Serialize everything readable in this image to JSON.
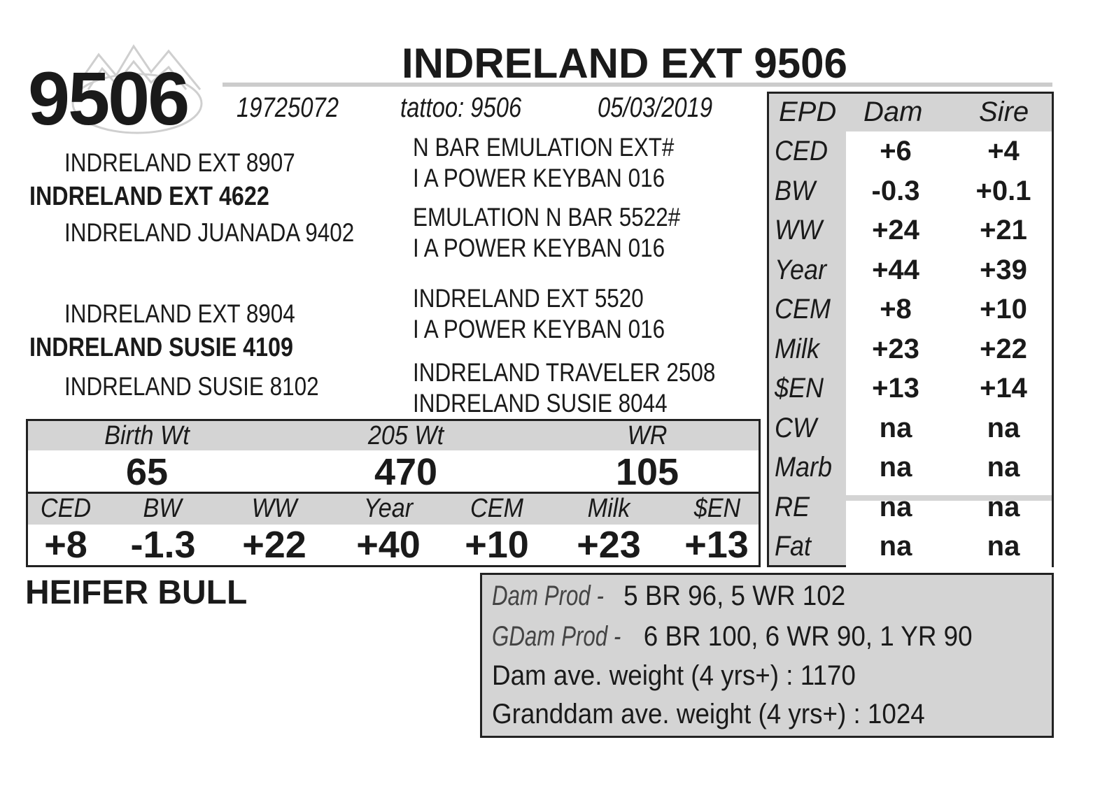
{
  "header": {
    "lot_number": "9506",
    "title": "INDRELAND EXT 9506",
    "registration": "19725072",
    "tattoo": "tattoo: 9506",
    "birth_date": "05/03/2019"
  },
  "pedigree": {
    "sire": "INDRELAND EXT 4622",
    "sire_sire": "INDRELAND EXT 8907",
    "sire_dam": "INDRELAND JUANADA 9402",
    "dam": "INDRELAND SUSIE 4109",
    "dam_sire": "INDRELAND EXT 8904",
    "dam_dam": "INDRELAND SUSIE 8102",
    "ss_sire": "N BAR EMULATION EXT#",
    "ss_dam": "I A POWER KEYBAN 016",
    "sd_sire": "EMULATION N BAR 5522#",
    "sd_dam": "I A POWER KEYBAN 016",
    "ds_sire": "INDRELAND EXT 5520",
    "ds_dam": "I A POWER KEYBAN 016",
    "dd_sire": "INDRELAND TRAVELER 2508",
    "dd_dam": "INDRELAND SUSIE 8044"
  },
  "epd_table": {
    "headers": [
      "EPD",
      "Dam",
      "Sire"
    ],
    "rows": [
      {
        "trait": "CED",
        "dam": "+6",
        "sire": "+4"
      },
      {
        "trait": "BW",
        "dam": "-0.3",
        "sire": "+0.1"
      },
      {
        "trait": "WW",
        "dam": "+24",
        "sire": "+21"
      },
      {
        "trait": "Year",
        "dam": "+44",
        "sire": "+39"
      },
      {
        "trait": "CEM",
        "dam": "+8",
        "sire": "+10"
      },
      {
        "trait": "Milk",
        "dam": "+23",
        "sire": "+22"
      },
      {
        "trait": "$EN",
        "dam": "+13",
        "sire": "+14"
      },
      {
        "trait": "CW",
        "dam": "na",
        "sire": "na"
      },
      {
        "trait": "Marb",
        "dam": "na",
        "sire": "na"
      },
      {
        "trait": "RE",
        "dam": "na",
        "sire": "na"
      },
      {
        "trait": "Fat",
        "dam": "na",
        "sire": "na"
      }
    ]
  },
  "performance": {
    "labels": [
      "Birth Wt",
      "205 Wt",
      "WR"
    ],
    "values": [
      "65",
      "470",
      "105"
    ]
  },
  "calf_epds": {
    "labels": [
      "CED",
      "BW",
      "WW",
      "Year",
      "CEM",
      "Milk",
      "$EN"
    ],
    "values": [
      "+8",
      "-1.3",
      "+22",
      "+40",
      "+10",
      "+23",
      "+13"
    ]
  },
  "footer_label": "HEIFER BULL",
  "production": {
    "dam_label": "Dam Prod - ",
    "dam_value": "5 BR 96, 5 WR 102",
    "gdam_label": "GDam Prod - ",
    "gdam_value": "6 BR 100, 6 WR 90, 1 YR 90",
    "dam_weight": "Dam ave. weight (4 yrs+) : 1170",
    "gdam_weight": "Granddam ave. weight (4 yrs+) : 1024"
  },
  "colors": {
    "shade": "#d4d4d4",
    "text": "#1a1a1a"
  }
}
